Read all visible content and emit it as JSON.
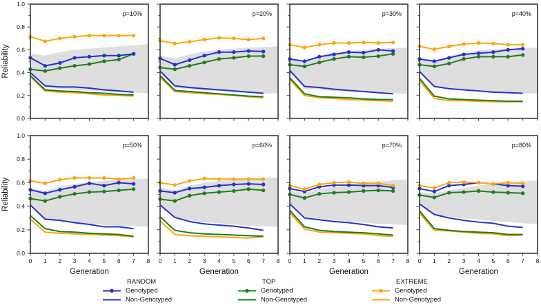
{
  "chart_data": {
    "type": "line",
    "title": "",
    "xlabel": "Generation",
    "ylabel": "Reliability",
    "xlim": [
      0,
      8
    ],
    "ylim": [
      0,
      1.0
    ],
    "xticks": [
      "0",
      "1",
      "2",
      "3",
      "4",
      "5",
      "6",
      "7",
      "8"
    ],
    "yticks": [
      "0.0",
      "0.2",
      "0.4",
      "0.6",
      "0.8",
      "1.0"
    ],
    "grid": false,
    "legend_position": "bottom",
    "colors": {
      "random": "#2333cc",
      "top": "#1f7d1f",
      "extreme": "#ffa40d",
      "band": "#dedede",
      "frame": "#3a3a3a"
    },
    "x": [
      0,
      1,
      2,
      3,
      4,
      5,
      6,
      7
    ],
    "band_x": [
      0,
      1,
      2,
      3,
      4,
      5,
      6,
      7,
      8
    ],
    "series_defs": [
      {
        "key": "extreme_nongenotyped",
        "group": "EXTREME",
        "label": "Non-Genotyped",
        "color_key": "extreme",
        "markers": false
      },
      {
        "key": "top_nongenotyped",
        "group": "TOP",
        "label": "Non-Genotyped",
        "color_key": "top",
        "markers": false
      },
      {
        "key": "random_nongenotyped",
        "group": "RANDOM",
        "label": "Non-Genotyped",
        "color_key": "random",
        "markers": false
      },
      {
        "key": "top_genotyped",
        "group": "TOP",
        "label": "Genotyped",
        "color_key": "top",
        "markers": true
      },
      {
        "key": "random_genotyped",
        "group": "RANDOM",
        "label": "Genotyped",
        "color_key": "random",
        "markers": true
      },
      {
        "key": "extreme_genotyped",
        "group": "EXTREME",
        "label": "Genotyped",
        "color_key": "extreme",
        "markers": true
      }
    ],
    "panels": [
      {
        "label": "p=10%",
        "band_top": [
          0.57,
          0.55,
          0.58,
          0.6,
          0.61,
          0.62,
          0.63,
          0.64,
          0.65
        ],
        "band_bottom": [
          0.41,
          0.27,
          0.26,
          0.25,
          0.245,
          0.235,
          0.23,
          0.225,
          0.22
        ],
        "series": {
          "extreme_genotyped": [
            0.715,
            0.675,
            0.7,
            0.715,
            0.725,
            0.725,
            0.725,
            0.725
          ],
          "random_genotyped": [
            0.53,
            0.46,
            0.485,
            0.53,
            0.54,
            0.55,
            0.55,
            0.565
          ],
          "top_genotyped": [
            0.43,
            0.415,
            0.44,
            0.46,
            0.475,
            0.5,
            0.515,
            0.565
          ],
          "random_nongenotyped": [
            0.4,
            0.285,
            0.275,
            0.275,
            0.265,
            0.25,
            0.24,
            0.23
          ],
          "top_nongenotyped": [
            0.375,
            0.25,
            0.24,
            0.235,
            0.225,
            0.22,
            0.21,
            0.205
          ],
          "extreme_nongenotyped": [
            0.365,
            0.24,
            0.23,
            0.225,
            0.215,
            0.205,
            0.2,
            0.195
          ]
        }
      },
      {
        "label": "p=20%",
        "band_top": [
          0.55,
          0.525,
          0.56,
          0.585,
          0.6,
          0.61,
          0.62,
          0.625,
          0.63
        ],
        "band_bottom": [
          0.41,
          0.265,
          0.255,
          0.245,
          0.24,
          0.23,
          0.225,
          0.22,
          0.22
        ],
        "series": {
          "extreme_genotyped": [
            0.68,
            0.655,
            0.67,
            0.69,
            0.705,
            0.7,
            0.69,
            0.7
          ],
          "random_genotyped": [
            0.525,
            0.47,
            0.51,
            0.55,
            0.58,
            0.58,
            0.59,
            0.585
          ],
          "top_genotyped": [
            0.445,
            0.43,
            0.46,
            0.49,
            0.52,
            0.53,
            0.545,
            0.545
          ],
          "random_nongenotyped": [
            0.415,
            0.285,
            0.27,
            0.26,
            0.25,
            0.24,
            0.23,
            0.22
          ],
          "top_nongenotyped": [
            0.375,
            0.245,
            0.235,
            0.225,
            0.215,
            0.205,
            0.195,
            0.19
          ],
          "extreme_nongenotyped": [
            0.36,
            0.235,
            0.225,
            0.215,
            0.21,
            0.2,
            0.19,
            0.18
          ]
        }
      },
      {
        "label": "p=30%",
        "band_top": [
          0.525,
          0.505,
          0.545,
          0.575,
          0.59,
          0.6,
          0.61,
          0.615,
          0.62
        ],
        "band_bottom": [
          0.4,
          0.26,
          0.25,
          0.24,
          0.235,
          0.23,
          0.225,
          0.22,
          0.215
        ],
        "series": {
          "extreme_genotyped": [
            0.645,
            0.62,
            0.645,
            0.66,
            0.66,
            0.665,
            0.66,
            0.665
          ],
          "random_genotyped": [
            0.52,
            0.5,
            0.54,
            0.56,
            0.58,
            0.575,
            0.6,
            0.59
          ],
          "top_genotyped": [
            0.47,
            0.455,
            0.49,
            0.52,
            0.54,
            0.535,
            0.545,
            0.565
          ],
          "random_nongenotyped": [
            0.42,
            0.28,
            0.27,
            0.255,
            0.245,
            0.235,
            0.225,
            0.215
          ],
          "top_nongenotyped": [
            0.355,
            0.215,
            0.19,
            0.185,
            0.18,
            0.17,
            0.165,
            0.165
          ],
          "extreme_nongenotyped": [
            0.34,
            0.2,
            0.18,
            0.175,
            0.165,
            0.16,
            0.155,
            0.15
          ]
        }
      },
      {
        "label": "p=40%",
        "band_top": [
          0.525,
          0.5,
          0.545,
          0.575,
          0.595,
          0.605,
          0.61,
          0.615,
          0.62
        ],
        "band_bottom": [
          0.4,
          0.27,
          0.255,
          0.245,
          0.24,
          0.23,
          0.225,
          0.22,
          0.22
        ],
        "series": {
          "extreme_genotyped": [
            0.63,
            0.605,
            0.63,
            0.65,
            0.66,
            0.655,
            0.645,
            0.645
          ],
          "random_genotyped": [
            0.52,
            0.5,
            0.53,
            0.56,
            0.57,
            0.58,
            0.6,
            0.61
          ],
          "top_genotyped": [
            0.47,
            0.455,
            0.48,
            0.52,
            0.54,
            0.54,
            0.54,
            0.555
          ],
          "random_nongenotyped": [
            0.41,
            0.28,
            0.26,
            0.25,
            0.24,
            0.23,
            0.225,
            0.22
          ],
          "top_nongenotyped": [
            0.35,
            0.195,
            0.17,
            0.165,
            0.16,
            0.155,
            0.15,
            0.15
          ],
          "extreme_nongenotyped": [
            0.33,
            0.175,
            0.155,
            0.155,
            0.15,
            0.145,
            0.145,
            0.145
          ]
        }
      },
      {
        "label": "p=50%",
        "band_top": [
          0.555,
          0.53,
          0.565,
          0.59,
          0.605,
          0.615,
          0.625,
          0.63,
          0.635
        ],
        "band_bottom": [
          0.41,
          0.285,
          0.27,
          0.26,
          0.25,
          0.24,
          0.235,
          0.23,
          0.225
        ],
        "series": {
          "extreme_genotyped": [
            0.615,
            0.595,
            0.625,
            0.64,
            0.64,
            0.64,
            0.63,
            0.64
          ],
          "random_genotyped": [
            0.54,
            0.51,
            0.54,
            0.565,
            0.595,
            0.575,
            0.6,
            0.59
          ],
          "top_genotyped": [
            0.465,
            0.445,
            0.48,
            0.505,
            0.52,
            0.525,
            0.535,
            0.545
          ],
          "random_nongenotyped": [
            0.41,
            0.29,
            0.28,
            0.26,
            0.245,
            0.225,
            0.225,
            0.21
          ],
          "top_nongenotyped": [
            0.32,
            0.21,
            0.185,
            0.18,
            0.17,
            0.165,
            0.16,
            0.145
          ],
          "extreme_nongenotyped": [
            0.29,
            0.18,
            0.17,
            0.165,
            0.16,
            0.155,
            0.15,
            0.14
          ]
        }
      },
      {
        "label": "p=60%",
        "band_top": [
          0.56,
          0.535,
          0.575,
          0.6,
          0.615,
          0.625,
          0.635,
          0.64,
          0.645
        ],
        "band_bottom": [
          0.4,
          0.3,
          0.28,
          0.265,
          0.255,
          0.245,
          0.235,
          0.23,
          0.225
        ],
        "series": {
          "extreme_genotyped": [
            0.6,
            0.58,
            0.615,
            0.635,
            0.63,
            0.63,
            0.63,
            0.63
          ],
          "random_genotyped": [
            0.53,
            0.515,
            0.55,
            0.56,
            0.575,
            0.585,
            0.59,
            0.585
          ],
          "top_genotyped": [
            0.46,
            0.445,
            0.49,
            0.51,
            0.52,
            0.53,
            0.545,
            0.535
          ],
          "random_nongenotyped": [
            0.41,
            0.305,
            0.27,
            0.25,
            0.24,
            0.23,
            0.215,
            0.195
          ],
          "top_nongenotyped": [
            0.31,
            0.195,
            0.175,
            0.165,
            0.16,
            0.155,
            0.15,
            0.145
          ],
          "extreme_nongenotyped": [
            0.275,
            0.16,
            0.15,
            0.145,
            0.14,
            0.135,
            0.13,
            0.14
          ]
        }
      },
      {
        "label": "p=70%",
        "band_top": [
          0.53,
          0.515,
          0.545,
          0.565,
          0.585,
          0.6,
          0.61,
          0.62,
          0.63
        ],
        "band_bottom": [
          0.41,
          0.31,
          0.295,
          0.28,
          0.27,
          0.26,
          0.25,
          0.245,
          0.24
        ],
        "series": {
          "extreme_genotyped": [
            0.575,
            0.545,
            0.585,
            0.6,
            0.605,
            0.595,
            0.595,
            0.575
          ],
          "random_genotyped": [
            0.55,
            0.525,
            0.565,
            0.58,
            0.58,
            0.575,
            0.575,
            0.56
          ],
          "top_genotyped": [
            0.5,
            0.47,
            0.505,
            0.515,
            0.52,
            0.53,
            0.535,
            0.53
          ],
          "random_nongenotyped": [
            0.42,
            0.3,
            0.285,
            0.27,
            0.26,
            0.245,
            0.225,
            0.215
          ],
          "top_nongenotyped": [
            0.365,
            0.225,
            0.195,
            0.185,
            0.18,
            0.175,
            0.165,
            0.155
          ],
          "extreme_nongenotyped": [
            0.345,
            0.205,
            0.18,
            0.175,
            0.17,
            0.165,
            0.15,
            0.145
          ]
        }
      },
      {
        "label": "p=80%",
        "band_top": [
          0.52,
          0.51,
          0.535,
          0.555,
          0.575,
          0.59,
          0.6,
          0.61,
          0.62
        ],
        "band_bottom": [
          0.41,
          0.325,
          0.31,
          0.295,
          0.285,
          0.275,
          0.265,
          0.255,
          0.25
        ],
        "series": {
          "extreme_genotyped": [
            0.575,
            0.555,
            0.6,
            0.605,
            0.6,
            0.59,
            0.6,
            0.595
          ],
          "random_genotyped": [
            0.55,
            0.525,
            0.575,
            0.585,
            0.6,
            0.59,
            0.575,
            0.57
          ],
          "top_genotyped": [
            0.495,
            0.475,
            0.515,
            0.52,
            0.53,
            0.52,
            0.515,
            0.51
          ],
          "random_nongenotyped": [
            0.42,
            0.33,
            0.3,
            0.28,
            0.265,
            0.255,
            0.23,
            0.22
          ],
          "top_nongenotyped": [
            0.36,
            0.21,
            0.195,
            0.185,
            0.18,
            0.175,
            0.16,
            0.16
          ],
          "extreme_nongenotyped": [
            0.34,
            0.195,
            0.19,
            0.18,
            0.17,
            0.165,
            0.15,
            0.155
          ]
        }
      }
    ]
  },
  "legend": {
    "groups": [
      {
        "name": "RANDOM",
        "color_key": "random",
        "items": [
          "Genotyped",
          "Non-Genotyped"
        ]
      },
      {
        "name": "TOP",
        "color_key": "top",
        "items": [
          "Genotyped",
          "Non-Genotyped"
        ]
      },
      {
        "name": "EXTREME",
        "color_key": "extreme",
        "items": [
          "Genotyped",
          "Non-Genotyped"
        ]
      }
    ]
  }
}
